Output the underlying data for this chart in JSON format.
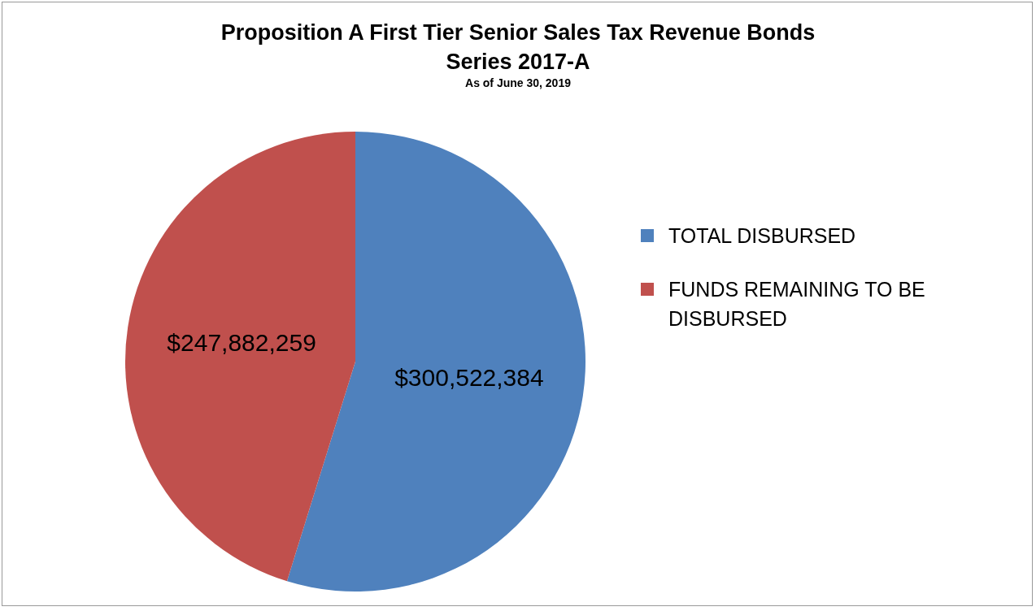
{
  "chart_data": {
    "type": "pie",
    "title": "Proposition A First Tier Senior Sales Tax Revenue Bonds Series 2017-A",
    "subtitle": "As of June 30, 2019",
    "categories": [
      "TOTAL DISBURSED",
      "FUNDS REMAINING TO BE DISBURSED"
    ],
    "values": [
      300522384,
      247882259
    ],
    "colors": [
      "#4f81bd",
      "#c0504d"
    ],
    "value_labels": [
      "$300,522,384",
      "$247,882,259"
    ],
    "legend": "right"
  }
}
